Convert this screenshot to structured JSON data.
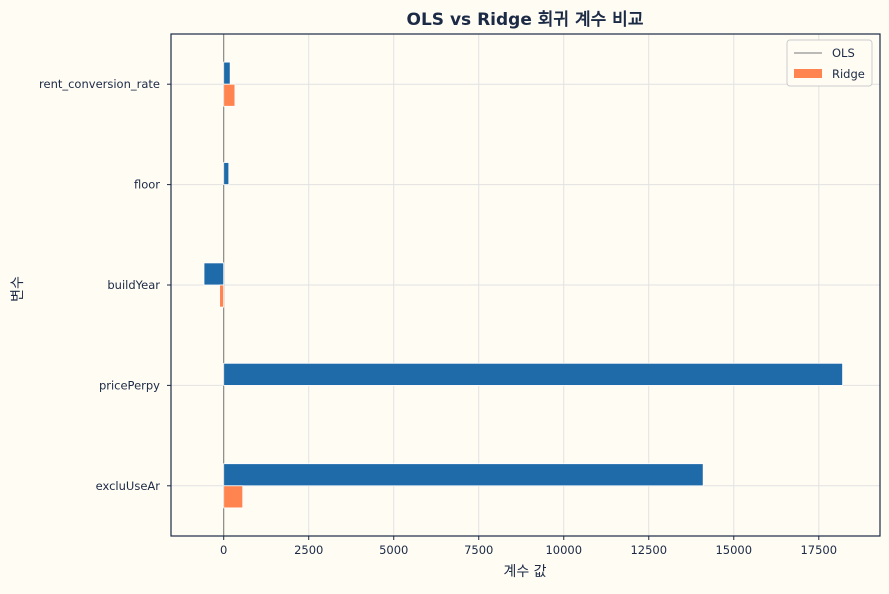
{
  "chart_data": {
    "type": "bar",
    "orientation": "horizontal",
    "title": "OLS vs Ridge 회귀 계수 비교",
    "xlabel": "계수 값",
    "ylabel": "변수",
    "categories": [
      "excluUseAr",
      "pricePerpy",
      "buildYear",
      "floor",
      "rent_conversion_rate"
    ],
    "series": [
      {
        "name": "OLS",
        "color": "#1f6aa8",
        "values": [
          14100,
          18200,
          -580,
          150,
          190
        ]
      },
      {
        "name": "Ridge",
        "color": "#ff8450",
        "values": [
          560,
          0,
          -120,
          0,
          330
        ]
      }
    ],
    "xlim": [
      -1550,
      19300
    ],
    "xticks": [
      0,
      2500,
      5000,
      7500,
      10000,
      12500,
      15000,
      17500
    ],
    "grid": true,
    "legend_position": "top-right",
    "colors": {
      "background": "#fffcf4",
      "axes": "#1b2a45",
      "zero_line": "#777777"
    }
  }
}
